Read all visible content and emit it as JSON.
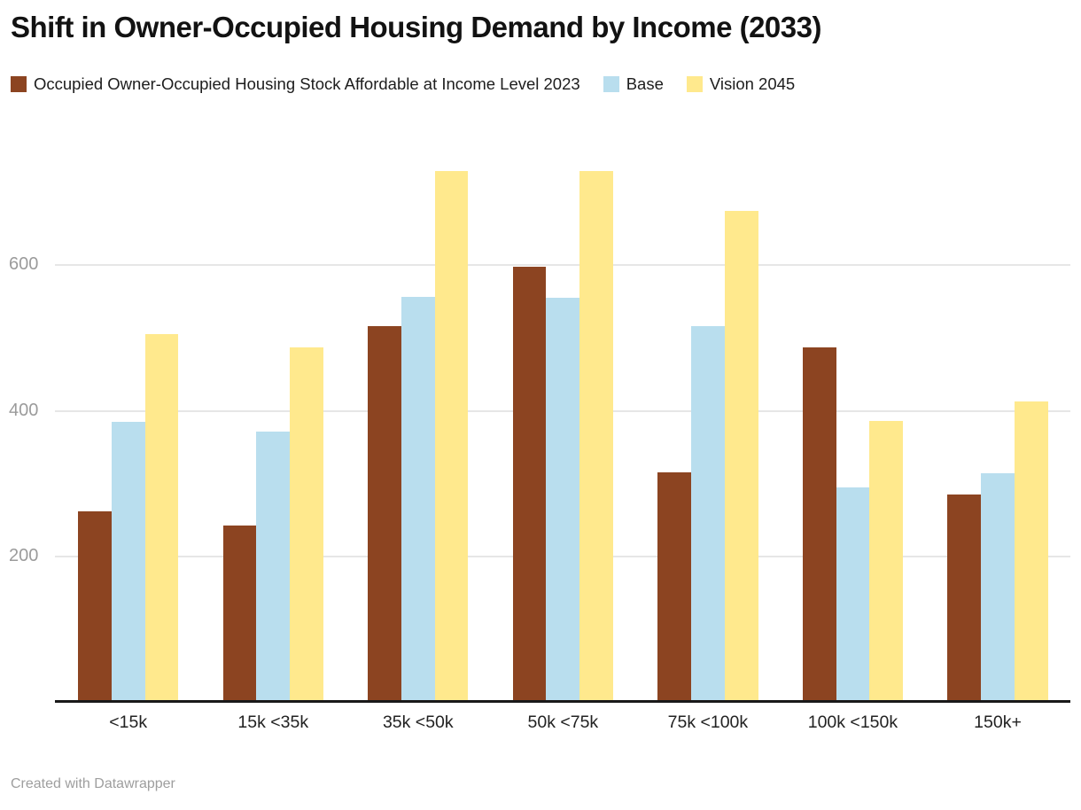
{
  "chart_data": {
    "type": "bar",
    "grouped": true,
    "title": "Shift in Owner-Occupied Housing Demand by Income (2033)",
    "xlabel": "",
    "ylabel": "",
    "categories": [
      "<15k",
      "15k <35k",
      "35k <50k",
      "50k <75k",
      "75k <100k",
      "100k <150k",
      "150k+"
    ],
    "series": [
      {
        "name": "Occupied Owner-Occupied Housing Stock Affordable at Income Level 2023",
        "color": "#8C4421",
        "values": [
          262,
          242,
          516,
          598,
          315,
          487,
          285
        ]
      },
      {
        "name": "Base",
        "color": "#B9DEEE",
        "values": [
          385,
          371,
          557,
          555,
          516,
          295,
          314
        ]
      },
      {
        "name": "Vision 2045",
        "color": "#FFE98D",
        "values": [
          505,
          487,
          730,
          730,
          675,
          386,
          413
        ]
      }
    ],
    "yticks": [
      200,
      400,
      600
    ],
    "ylim": [
      0,
      760
    ],
    "grid": "horizontal",
    "legend_position": "top-left",
    "colors": {
      "axis_line": "#191919",
      "gridline": "#e6e6e6",
      "y_tick_text": "#9b9b9b",
      "x_tick_text": "#222222"
    }
  },
  "footer": {
    "credit": "Created with Datawrapper"
  }
}
